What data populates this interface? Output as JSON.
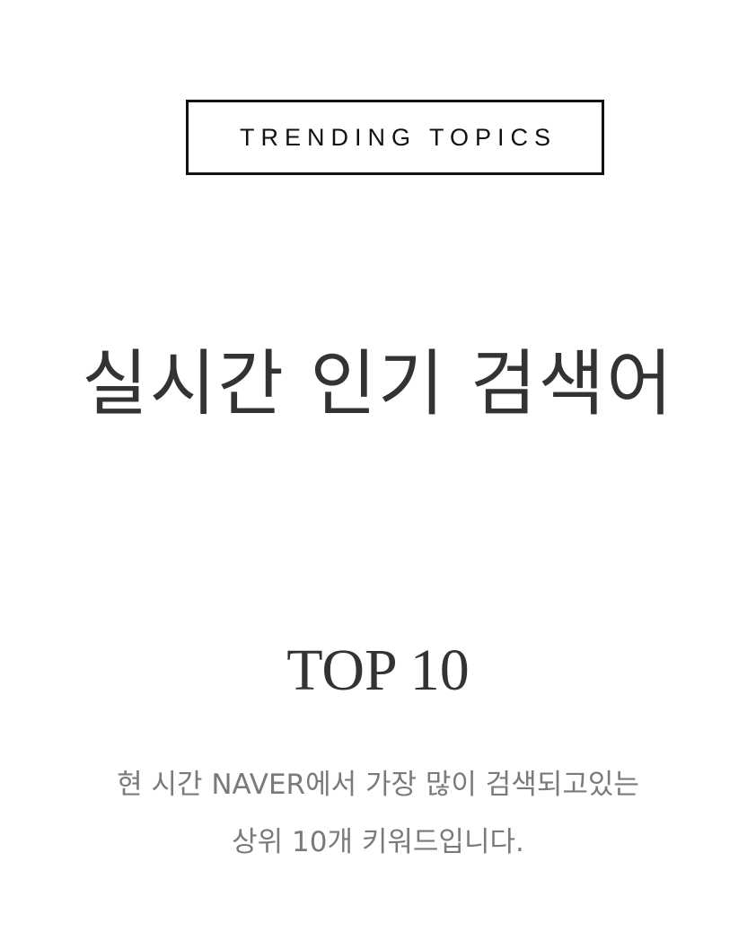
{
  "badge": {
    "label": "TRENDING TOPICS"
  },
  "headline": {
    "title": "실시간 인기 검색어"
  },
  "section": {
    "title": "TOP 10",
    "description_line1": "현 시간 NAVER에서 가장 많이 검색되고있는",
    "description_line2": "상위 10개 키워드입니다."
  },
  "colors": {
    "background": "#ffffff",
    "border": "#111111",
    "heading": "#333333",
    "muted_text": "#7a7a7a"
  }
}
